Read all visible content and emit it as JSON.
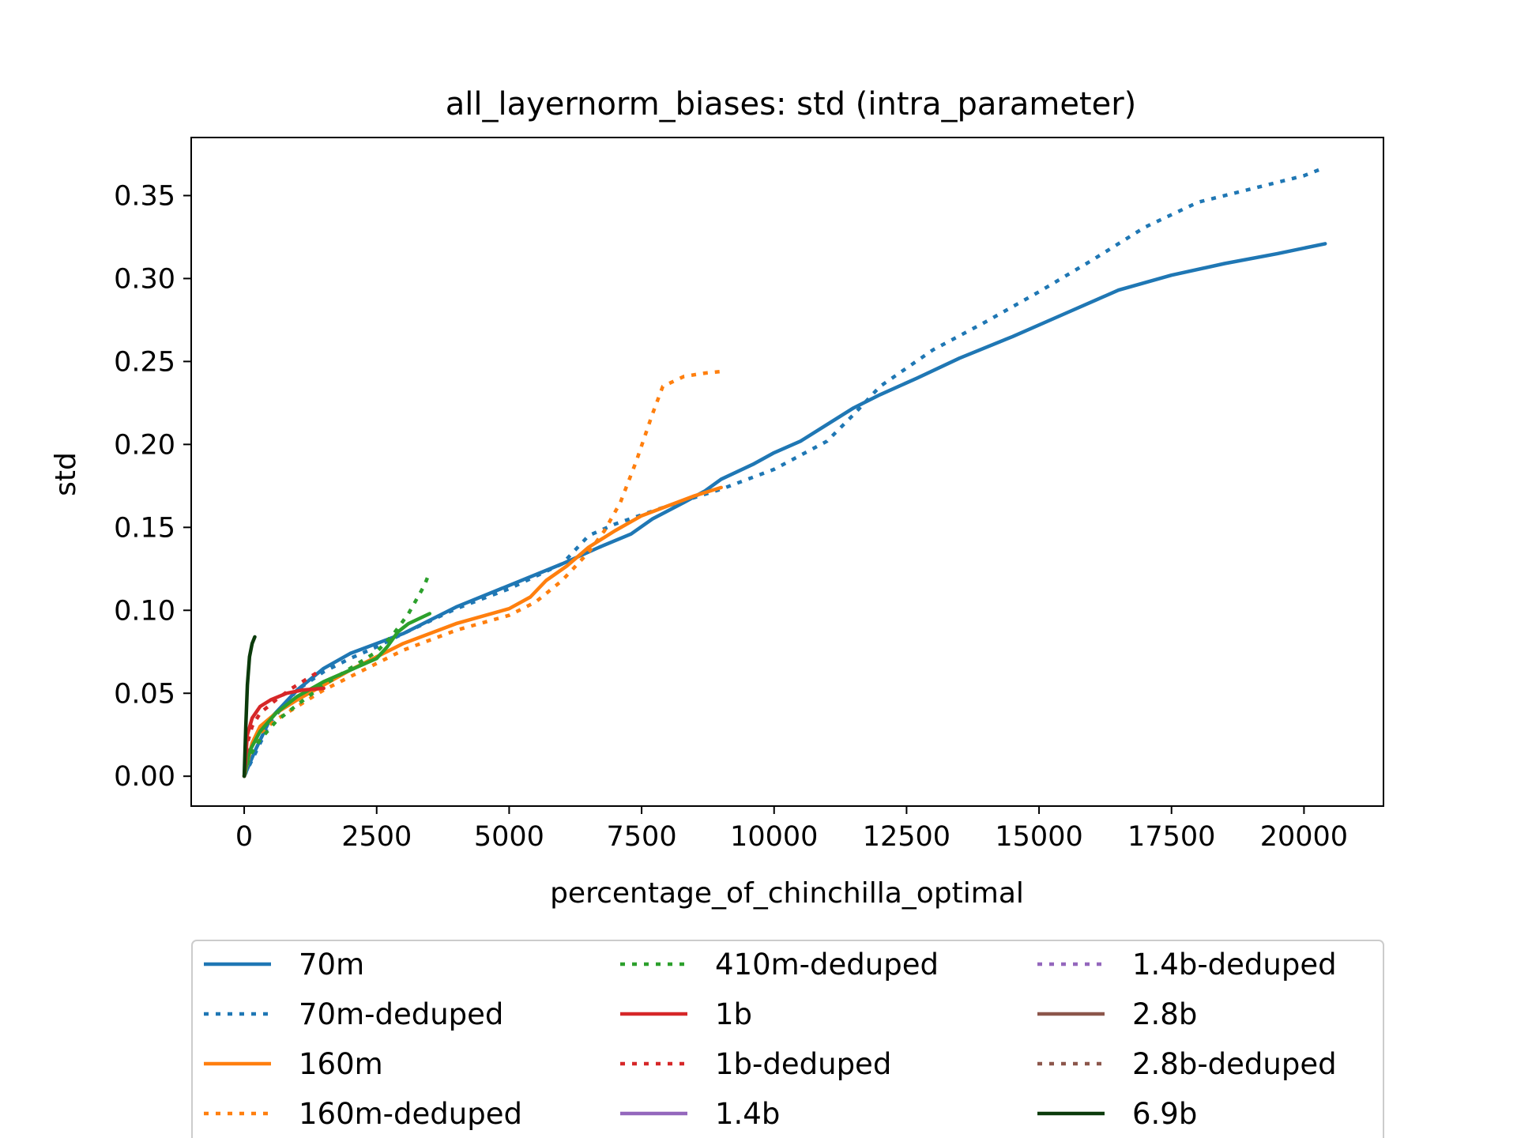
{
  "chart_data": {
    "type": "line",
    "title": "all_layernorm_biases: std (intra_parameter)",
    "xlabel": "percentage_of_chinchilla_optimal",
    "ylabel": "std",
    "xlim": [
      -1000,
      21500
    ],
    "ylim": [
      -0.018,
      0.385
    ],
    "xticks": [
      0,
      2500,
      5000,
      7500,
      10000,
      12500,
      15000,
      17500,
      20000
    ],
    "xtick_labels": [
      "0",
      "2500",
      "5000",
      "7500",
      "10000",
      "12500",
      "15000",
      "17500",
      "20000"
    ],
    "yticks": [
      0.0,
      0.05,
      0.1,
      0.15,
      0.2,
      0.25,
      0.3,
      0.35
    ],
    "ytick_labels": [
      "0.00",
      "0.05",
      "0.10",
      "0.15",
      "0.20",
      "0.25",
      "0.30",
      "0.35"
    ],
    "grid": false,
    "legend_position": "below plot, 3 columns",
    "series": [
      {
        "name": "70m",
        "color": "#1f77b4",
        "dash": "solid",
        "x": [
          0,
          200,
          500,
          1000,
          1500,
          2000,
          2500,
          3000,
          4000,
          5000,
          6000,
          6700,
          7300,
          7700,
          8300,
          8700,
          9000,
          9600,
          10000,
          10500,
          11000,
          11500,
          12000,
          12700,
          13500,
          14500,
          15500,
          16500,
          17500,
          18500,
          19500,
          20400
        ],
        "y": [
          0.0,
          0.015,
          0.035,
          0.052,
          0.065,
          0.074,
          0.08,
          0.086,
          0.102,
          0.115,
          0.128,
          0.138,
          0.146,
          0.155,
          0.165,
          0.172,
          0.179,
          0.188,
          0.195,
          0.202,
          0.212,
          0.222,
          0.23,
          0.24,
          0.252,
          0.265,
          0.279,
          0.293,
          0.302,
          0.309,
          0.315,
          0.321
        ]
      },
      {
        "name": "70m-deduped",
        "color": "#1f77b4",
        "dash": "dotted",
        "x": [
          0,
          500,
          1000,
          1500,
          2000,
          2500,
          3000,
          4000,
          5000,
          6000,
          6500,
          7000,
          8000,
          9000,
          10000,
          11000,
          11500,
          12000,
          13000,
          14000,
          15000,
          16000,
          17000,
          18000,
          19000,
          20000,
          20400
        ],
        "y": [
          0.0,
          0.033,
          0.052,
          0.063,
          0.071,
          0.078,
          0.086,
          0.101,
          0.113,
          0.128,
          0.145,
          0.152,
          0.163,
          0.173,
          0.185,
          0.202,
          0.218,
          0.235,
          0.257,
          0.274,
          0.292,
          0.311,
          0.331,
          0.346,
          0.354,
          0.362,
          0.367
        ]
      },
      {
        "name": "160m",
        "color": "#ff7f0e",
        "dash": "solid",
        "x": [
          0,
          150,
          300,
          600,
          1000,
          1500,
          2000,
          2500,
          3000,
          4000,
          5000,
          5400,
          5700,
          6100,
          6500,
          7000,
          7500,
          8000,
          8500,
          9000
        ],
        "y": [
          0.0,
          0.02,
          0.03,
          0.038,
          0.046,
          0.055,
          0.064,
          0.072,
          0.08,
          0.092,
          0.101,
          0.108,
          0.118,
          0.127,
          0.138,
          0.148,
          0.157,
          0.163,
          0.169,
          0.174
        ]
      },
      {
        "name": "160m-deduped",
        "color": "#ff7f0e",
        "dash": "dotted",
        "x": [
          0,
          150,
          300,
          600,
          1000,
          1500,
          2000,
          2500,
          3000,
          4000,
          5000,
          5500,
          6000,
          6500,
          6800,
          7100,
          7400,
          7700,
          7900,
          8300,
          8700,
          9000
        ],
        "y": [
          0.0,
          0.018,
          0.026,
          0.034,
          0.042,
          0.052,
          0.06,
          0.068,
          0.076,
          0.088,
          0.097,
          0.105,
          0.118,
          0.135,
          0.148,
          0.165,
          0.19,
          0.218,
          0.235,
          0.241,
          0.243,
          0.244
        ]
      },
      {
        "name": "410m-deduped",
        "color": "#2ca02c",
        "dash": "dotted",
        "x": [
          0,
          100,
          300,
          600,
          1000,
          1500,
          2000,
          2500,
          2800,
          3100,
          3400,
          3500
        ],
        "y": [
          0.0,
          0.012,
          0.022,
          0.033,
          0.043,
          0.055,
          0.065,
          0.075,
          0.085,
          0.098,
          0.115,
          0.123
        ]
      },
      {
        "name": "410m",
        "color": "#2ca02c",
        "dash": "solid",
        "x": [
          0,
          100,
          300,
          600,
          1000,
          1500,
          2000,
          2500,
          2700,
          2900,
          3100,
          3500
        ],
        "y": [
          0.0,
          0.015,
          0.027,
          0.038,
          0.048,
          0.057,
          0.064,
          0.071,
          0.078,
          0.087,
          0.092,
          0.098
        ]
      },
      {
        "name": "1b",
        "color": "#d62728",
        "dash": "solid",
        "x": [
          0,
          60,
          150,
          300,
          500,
          800,
          1100,
          1500
        ],
        "y": [
          0.0,
          0.025,
          0.035,
          0.042,
          0.046,
          0.05,
          0.052,
          0.053
        ]
      },
      {
        "name": "1b-deduped",
        "color": "#d62728",
        "dash": "dotted",
        "x": [
          0,
          60,
          150,
          300,
          600,
          900,
          1200,
          1400
        ],
        "y": [
          0.0,
          0.02,
          0.03,
          0.038,
          0.046,
          0.053,
          0.059,
          0.063
        ]
      },
      {
        "name": "1.4b",
        "color": "#9467bd",
        "dash": "solid",
        "x": [],
        "y": []
      },
      {
        "name": "1.4b-deduped",
        "color": "#9467bd",
        "dash": "dotted",
        "x": [],
        "y": []
      },
      {
        "name": "2.8b",
        "color": "#8c564b",
        "dash": "solid",
        "x": [],
        "y": []
      },
      {
        "name": "2.8b-deduped",
        "color": "#8c564b",
        "dash": "dotted",
        "x": [],
        "y": []
      },
      {
        "name": "6.9b",
        "color": "#0b3b0b",
        "dash": "solid",
        "x": [
          0,
          30,
          60,
          100,
          150,
          200
        ],
        "y": [
          0.0,
          0.03,
          0.055,
          0.072,
          0.08,
          0.084
        ]
      }
    ],
    "legend": [
      {
        "label": "70m",
        "color": "#1f77b4",
        "dash": "solid"
      },
      {
        "label": "70m-deduped",
        "color": "#1f77b4",
        "dash": "dotted"
      },
      {
        "label": "160m",
        "color": "#ff7f0e",
        "dash": "solid"
      },
      {
        "label": "160m-deduped",
        "color": "#ff7f0e",
        "dash": "dotted"
      },
      {
        "label": "410m-deduped",
        "color": "#2ca02c",
        "dash": "dotted"
      },
      {
        "label": "1b",
        "color": "#d62728",
        "dash": "solid"
      },
      {
        "label": "1b-deduped",
        "color": "#d62728",
        "dash": "dotted"
      },
      {
        "label": "1.4b",
        "color": "#9467bd",
        "dash": "solid"
      },
      {
        "label": "1.4b-deduped",
        "color": "#9467bd",
        "dash": "dotted"
      },
      {
        "label": "2.8b",
        "color": "#8c564b",
        "dash": "solid"
      },
      {
        "label": "2.8b-deduped",
        "color": "#8c564b",
        "dash": "dotted"
      },
      {
        "label": "6.9b",
        "color": "#0b3b0b",
        "dash": "solid"
      }
    ]
  }
}
